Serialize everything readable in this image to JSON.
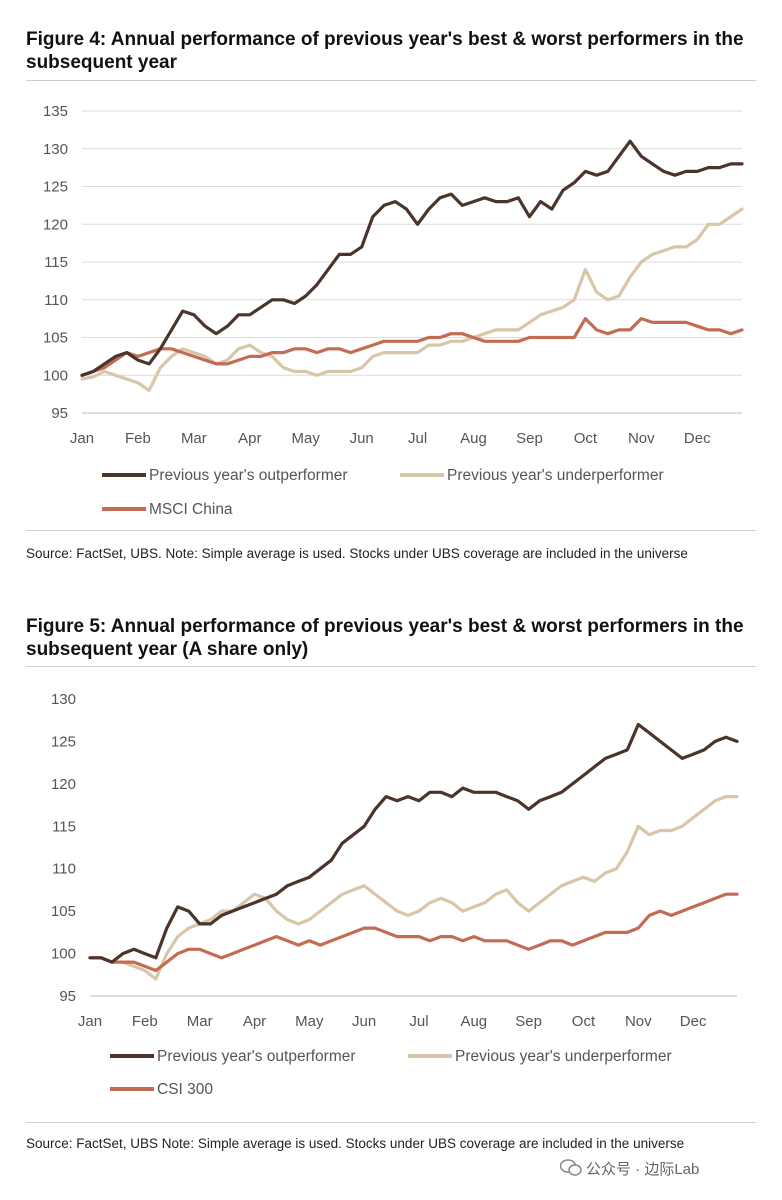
{
  "figures": [
    {
      "title": "Figure 4: Annual performance of previous year's best & worst performers in the subsequent year",
      "source": "Source: FactSet, UBS. Note: Simple average is used. Stocks under UBS coverage are included in the universe"
    },
    {
      "title": "Figure 5: Annual performance of previous year's best & worst performers in the subsequent year (A share only)",
      "source": "Source: FactSet, UBS Note: Simple average is used. Stocks under UBS coverage are included in the universe"
    }
  ],
  "watermark": {
    "text": "公众号 · 边际Lab"
  },
  "colors": {
    "outperformer": "#4a342c",
    "underperformer": "#d9c6a8",
    "index": "#c46c53"
  },
  "chart_data": [
    {
      "type": "line",
      "title": "Figure 4: Annual performance of previous year's best & worst performers in the subsequent year",
      "x_label": "",
      "y_label": "",
      "x_ticks": [
        "Jan",
        "Feb",
        "Mar",
        "Apr",
        "May",
        "Jun",
        "Jul",
        "Aug",
        "Sep",
        "Oct",
        "Nov",
        "Dec"
      ],
      "y_ticks": [
        95,
        100,
        105,
        110,
        115,
        120,
        125,
        130,
        135
      ],
      "ylim": [
        95,
        135
      ],
      "xlim": [
        0,
        11.8
      ],
      "grid": true,
      "legend": "bottom",
      "series": [
        {
          "name": "Previous year's outperformer",
          "color_key": "outperformer",
          "x": [
            0,
            0.2,
            0.4,
            0.6,
            0.8,
            1.0,
            1.2,
            1.4,
            1.6,
            1.8,
            2.0,
            2.2,
            2.4,
            2.6,
            2.8,
            3.0,
            3.2,
            3.4,
            3.6,
            3.8,
            4.0,
            4.2,
            4.4,
            4.6,
            4.8,
            5.0,
            5.2,
            5.4,
            5.6,
            5.8,
            6.0,
            6.2,
            6.4,
            6.6,
            6.8,
            7.0,
            7.2,
            7.4,
            7.6,
            7.8,
            8.0,
            8.2,
            8.4,
            8.6,
            8.8,
            9.0,
            9.2,
            9.4,
            9.6,
            9.8,
            10.0,
            10.2,
            10.4,
            10.6,
            10.8,
            11.0,
            11.2,
            11.4,
            11.6,
            11.8
          ],
          "y": [
            100,
            100.5,
            101.5,
            102.5,
            103,
            102,
            101.5,
            103.5,
            106,
            108.5,
            108,
            106.5,
            105.5,
            106.5,
            108,
            108,
            109,
            110,
            110,
            109.5,
            110.5,
            112,
            114,
            116,
            116,
            117,
            121,
            122.5,
            123,
            122,
            120,
            122,
            123.5,
            124,
            122.5,
            123,
            123.5,
            123,
            123,
            123.5,
            121,
            123,
            122,
            124.5,
            125.5,
            127,
            126.5,
            127,
            129,
            131,
            129,
            128,
            127,
            126.5,
            127,
            127,
            127.5,
            127.5,
            128,
            128
          ]
        },
        {
          "name": "Previous year's underperformer",
          "color_key": "underperformer",
          "x": [
            0,
            0.2,
            0.4,
            0.6,
            0.8,
            1.0,
            1.2,
            1.4,
            1.6,
            1.8,
            2.0,
            2.2,
            2.4,
            2.6,
            2.8,
            3.0,
            3.2,
            3.4,
            3.6,
            3.8,
            4.0,
            4.2,
            4.4,
            4.6,
            4.8,
            5.0,
            5.2,
            5.4,
            5.6,
            5.8,
            6.0,
            6.2,
            6.4,
            6.6,
            6.8,
            7.0,
            7.2,
            7.4,
            7.6,
            7.8,
            8.0,
            8.2,
            8.4,
            8.6,
            8.8,
            9.0,
            9.2,
            9.4,
            9.6,
            9.8,
            10.0,
            10.2,
            10.4,
            10.6,
            10.8,
            11.0,
            11.2,
            11.4,
            11.6,
            11.8
          ],
          "y": [
            99.5,
            99.8,
            100.5,
            100,
            99.5,
            99,
            98,
            101,
            102.5,
            103.5,
            103,
            102.5,
            101.5,
            102,
            103.5,
            104,
            103,
            102.5,
            101,
            100.5,
            100.5,
            100,
            100.5,
            100.5,
            100.5,
            101,
            102.5,
            103,
            103,
            103,
            103,
            104,
            104,
            104.5,
            104.5,
            105,
            105.5,
            106,
            106,
            106,
            107,
            108,
            108.5,
            109,
            110,
            114,
            111,
            110,
            110.5,
            113,
            115,
            116,
            116.5,
            117,
            117,
            118,
            120,
            120,
            121,
            122
          ]
        },
        {
          "name": "MSCI China",
          "color_key": "index",
          "x": [
            0,
            0.2,
            0.4,
            0.6,
            0.8,
            1.0,
            1.2,
            1.4,
            1.6,
            1.8,
            2.0,
            2.2,
            2.4,
            2.6,
            2.8,
            3.0,
            3.2,
            3.4,
            3.6,
            3.8,
            4.0,
            4.2,
            4.4,
            4.6,
            4.8,
            5.0,
            5.2,
            5.4,
            5.6,
            5.8,
            6.0,
            6.2,
            6.4,
            6.6,
            6.8,
            7.0,
            7.2,
            7.4,
            7.6,
            7.8,
            8.0,
            8.2,
            8.4,
            8.6,
            8.8,
            9.0,
            9.2,
            9.4,
            9.6,
            9.8,
            10.0,
            10.2,
            10.4,
            10.6,
            10.8,
            11.0,
            11.2,
            11.4,
            11.6,
            11.8
          ],
          "y": [
            100,
            100.5,
            101,
            102,
            103,
            102.5,
            103,
            103.5,
            103.5,
            103,
            102.5,
            102,
            101.5,
            101.5,
            102,
            102.5,
            102.5,
            103,
            103,
            103.5,
            103.5,
            103,
            103.5,
            103.5,
            103,
            103.5,
            104,
            104.5,
            104.5,
            104.5,
            104.5,
            105,
            105,
            105.5,
            105.5,
            105,
            104.5,
            104.5,
            104.5,
            104.5,
            105,
            105,
            105,
            105,
            105,
            107.5,
            106,
            105.5,
            106,
            106,
            107.5,
            107,
            107,
            107,
            107,
            106.5,
            106,
            106,
            105.5,
            106
          ]
        }
      ]
    },
    {
      "type": "line",
      "title": "Figure 5: Annual performance of previous year's best & worst performers in the subsequent year (A share only)",
      "x_label": "",
      "y_label": "",
      "x_ticks": [
        "Jan",
        "Feb",
        "Mar",
        "Apr",
        "May",
        "Jun",
        "Jul",
        "Aug",
        "Sep",
        "Oct",
        "Nov",
        "Dec"
      ],
      "y_ticks": [
        95,
        100,
        105,
        110,
        115,
        120,
        125,
        130
      ],
      "ylim": [
        95,
        130
      ],
      "xlim": [
        0,
        11.8
      ],
      "grid": false,
      "legend": "bottom",
      "series": [
        {
          "name": "Previous year's outperformer",
          "color_key": "outperformer",
          "x": [
            0,
            0.2,
            0.4,
            0.6,
            0.8,
            1.0,
            1.2,
            1.4,
            1.6,
            1.8,
            2.0,
            2.2,
            2.4,
            2.6,
            2.8,
            3.0,
            3.2,
            3.4,
            3.6,
            3.8,
            4.0,
            4.2,
            4.4,
            4.6,
            4.8,
            5.0,
            5.2,
            5.4,
            5.6,
            5.8,
            6.0,
            6.2,
            6.4,
            6.6,
            6.8,
            7.0,
            7.2,
            7.4,
            7.6,
            7.8,
            8.0,
            8.2,
            8.4,
            8.6,
            8.8,
            9.0,
            9.2,
            9.4,
            9.6,
            9.8,
            10.0,
            10.2,
            10.4,
            10.6,
            10.8,
            11.0,
            11.2,
            11.4,
            11.6,
            11.8
          ],
          "y": [
            99.5,
            99.5,
            99,
            100,
            100.5,
            100,
            99.5,
            103,
            105.5,
            105,
            103.5,
            103.5,
            104.5,
            105,
            105.5,
            106,
            106.5,
            107,
            108,
            108.5,
            109,
            110,
            111,
            113,
            114,
            115,
            117,
            118.5,
            118,
            118.5,
            118,
            119,
            119,
            118.5,
            119.5,
            119,
            119,
            119,
            118.5,
            118,
            117,
            118,
            118.5,
            119,
            120,
            121,
            122,
            123,
            123.5,
            124,
            127,
            126,
            125,
            124,
            123,
            123.5,
            124,
            125,
            125.5,
            125
          ]
        },
        {
          "name": "Previous year's underperformer",
          "color_key": "underperformer",
          "x": [
            0,
            0.2,
            0.4,
            0.6,
            0.8,
            1.0,
            1.2,
            1.4,
            1.6,
            1.8,
            2.0,
            2.2,
            2.4,
            2.6,
            2.8,
            3.0,
            3.2,
            3.4,
            3.6,
            3.8,
            4.0,
            4.2,
            4.4,
            4.6,
            4.8,
            5.0,
            5.2,
            5.4,
            5.6,
            5.8,
            6.0,
            6.2,
            6.4,
            6.6,
            6.8,
            7.0,
            7.2,
            7.4,
            7.6,
            7.8,
            8.0,
            8.2,
            8.4,
            8.6,
            8.8,
            9.0,
            9.2,
            9.4,
            9.6,
            9.8,
            10.0,
            10.2,
            10.4,
            10.6,
            10.8,
            11.0,
            11.2,
            11.4,
            11.6,
            11.8
          ],
          "y": [
            99.5,
            99.5,
            99,
            99,
            98.5,
            98,
            97,
            100,
            102,
            103,
            103.5,
            104,
            105,
            105,
            106,
            107,
            106.5,
            105,
            104,
            103.5,
            104,
            105,
            106,
            107,
            107.5,
            108,
            107,
            106,
            105,
            104.5,
            105,
            106,
            106.5,
            106,
            105,
            105.5,
            106,
            107,
            107.5,
            106,
            105,
            106,
            107,
            108,
            108.5,
            109,
            108.5,
            109.5,
            110,
            112,
            115,
            114,
            114.5,
            114.5,
            115,
            116,
            117,
            118,
            118.5,
            118.5
          ]
        },
        {
          "name": "CSI 300",
          "color_key": "index",
          "x": [
            0,
            0.2,
            0.4,
            0.6,
            0.8,
            1.0,
            1.2,
            1.4,
            1.6,
            1.8,
            2.0,
            2.2,
            2.4,
            2.6,
            2.8,
            3.0,
            3.2,
            3.4,
            3.6,
            3.8,
            4.0,
            4.2,
            4.4,
            4.6,
            4.8,
            5.0,
            5.2,
            5.4,
            5.6,
            5.8,
            6.0,
            6.2,
            6.4,
            6.6,
            6.8,
            7.0,
            7.2,
            7.4,
            7.6,
            7.8,
            8.0,
            8.2,
            8.4,
            8.6,
            8.8,
            9.0,
            9.2,
            9.4,
            9.6,
            9.8,
            10.0,
            10.2,
            10.4,
            10.6,
            10.8,
            11.0,
            11.2,
            11.4,
            11.6,
            11.8
          ],
          "y": [
            99.5,
            99.5,
            99,
            99,
            99,
            98.5,
            98,
            99,
            100,
            100.5,
            100.5,
            100,
            99.5,
            100,
            100.5,
            101,
            101.5,
            102,
            101.5,
            101,
            101.5,
            101,
            101.5,
            102,
            102.5,
            103,
            103,
            102.5,
            102,
            102,
            102,
            101.5,
            102,
            102,
            101.5,
            102,
            101.5,
            101.5,
            101.5,
            101,
            100.5,
            101,
            101.5,
            101.5,
            101,
            101.5,
            102,
            102.5,
            102.5,
            102.5,
            103,
            104.5,
            105,
            104.5,
            105,
            105.5,
            106,
            106.5,
            107,
            107
          ]
        }
      ]
    }
  ]
}
